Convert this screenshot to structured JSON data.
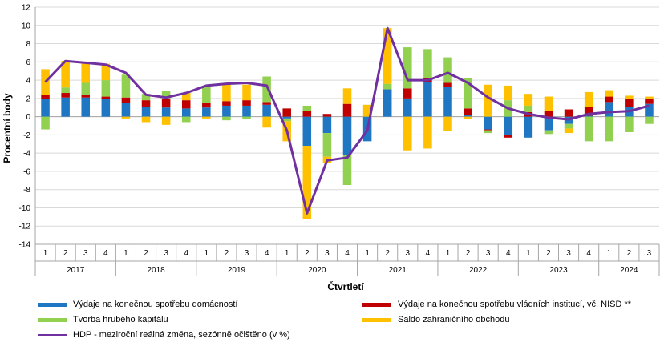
{
  "chart_data": {
    "type": "bar",
    "stacked": true,
    "ylabel": "Procentní body",
    "xlabel": "Čtvrtletí",
    "ylim": [
      -14,
      12
    ],
    "yticks": [
      -14,
      -12,
      -10,
      -8,
      -6,
      -4,
      -2,
      0,
      2,
      4,
      6,
      8,
      10,
      12
    ],
    "grid": true,
    "legend_position": "bottom",
    "quarter_labels": [
      "1",
      "2",
      "3",
      "4",
      "1",
      "2",
      "3",
      "4",
      "1",
      "2",
      "3",
      "4",
      "1",
      "2",
      "3",
      "4",
      "1",
      "2",
      "3",
      "4",
      "1",
      "2",
      "3",
      "4",
      "1",
      "2",
      "3",
      "4",
      "1",
      "2",
      "3"
    ],
    "years": [
      {
        "label": "2017",
        "start": 0,
        "count": 4
      },
      {
        "label": "2018",
        "start": 4,
        "count": 4
      },
      {
        "label": "2019",
        "start": 8,
        "count": 4
      },
      {
        "label": "2020",
        "start": 12,
        "count": 4
      },
      {
        "label": "2021",
        "start": 16,
        "count": 4
      },
      {
        "label": "2022",
        "start": 20,
        "count": 4
      },
      {
        "label": "2023",
        "start": 24,
        "count": 4
      },
      {
        "label": "2024",
        "start": 28,
        "count": 3
      }
    ],
    "series": [
      {
        "name": "Výdaje na konečnou spotřebu domácností",
        "color": "#1f77c4",
        "values": [
          1.9,
          2.1,
          2.1,
          1.9,
          1.5,
          1.1,
          1.0,
          0.9,
          1.0,
          1.2,
          1.2,
          1.3,
          -0.2,
          -3.2,
          -1.8,
          -4.2,
          -2.7,
          3.0,
          2.0,
          3.8,
          3.3,
          0.2,
          -1.4,
          -2.0,
          -2.3,
          -1.5,
          -0.8,
          0.1,
          1.6,
          1.1,
          1.4
        ]
      },
      {
        "name": "Výdaje na konečnou spotřebu vládních institucí, vč. NISD **",
        "color": "#c00000",
        "values": [
          0.5,
          0.5,
          0.3,
          0.3,
          0.6,
          0.7,
          1.0,
          0.9,
          0.5,
          0.5,
          0.6,
          0.3,
          0.9,
          0.6,
          0.3,
          1.4,
          0.0,
          0.0,
          1.1,
          0.4,
          0.4,
          0.7,
          -0.1,
          -0.3,
          0.5,
          0.6,
          0.8,
          1.0,
          0.6,
          0.8,
          0.6
        ]
      },
      {
        "name": "Tvorba hrubého kapitálu",
        "color": "#92d050",
        "values": [
          -1.4,
          0.6,
          1.3,
          1.8,
          2.5,
          0.7,
          0.8,
          -0.6,
          1.8,
          -0.4,
          -0.3,
          2.8,
          -0.3,
          0.6,
          -2.6,
          -3.3,
          0.0,
          0.6,
          4.5,
          3.2,
          2.8,
          3.3,
          -0.3,
          1.8,
          0.7,
          -0.4,
          -0.5,
          -2.7,
          -2.7,
          -1.7,
          -0.8
        ]
      },
      {
        "name": "Saldo zahraničního obchodu",
        "color": "#ffc000",
        "values": [
          2.8,
          2.9,
          2.3,
          1.8,
          -0.2,
          -0.6,
          -0.9,
          0.8,
          -0.2,
          1.8,
          1.7,
          -1.2,
          -2.2,
          -8.0,
          -0.7,
          1.7,
          1.3,
          6.1,
          -3.7,
          -3.5,
          -1.6,
          -0.3,
          3.5,
          1.6,
          1.3,
          1.6,
          -0.5,
          1.6,
          0.7,
          0.4,
          0.2
        ]
      }
    ],
    "line": {
      "name": "HDP - meziroční reálná změna, sezónně očištěno (v %)",
      "color": "#7030a0",
      "values": [
        3.8,
        6.1,
        5.9,
        5.7,
        4.8,
        2.4,
        2.1,
        2.6,
        3.4,
        3.6,
        3.7,
        3.4,
        -1.5,
        -10.6,
        -4.8,
        -4.5,
        -1.5,
        9.7,
        4.0,
        4.0,
        4.8,
        3.7,
        2.1,
        0.9,
        0.3,
        -0.1,
        -0.3,
        0.3,
        0.5,
        0.6,
        1.2
      ]
    }
  },
  "legend": {
    "item1": "Výdaje na konečnou spotřebu domácností",
    "item2": "Výdaje na konečnou spotřebu vládních institucí, vč. NISD **",
    "item3": "Tvorba hrubého kapitálu",
    "item4": "Saldo zahraničního obchodu",
    "item5": "HDP - meziroční reálná změna, sezónně očištěno (v %)",
    "color1": "#1f77c4",
    "color2": "#c00000",
    "color3": "#92d050",
    "color4": "#ffc000",
    "color5": "#7030a0"
  }
}
